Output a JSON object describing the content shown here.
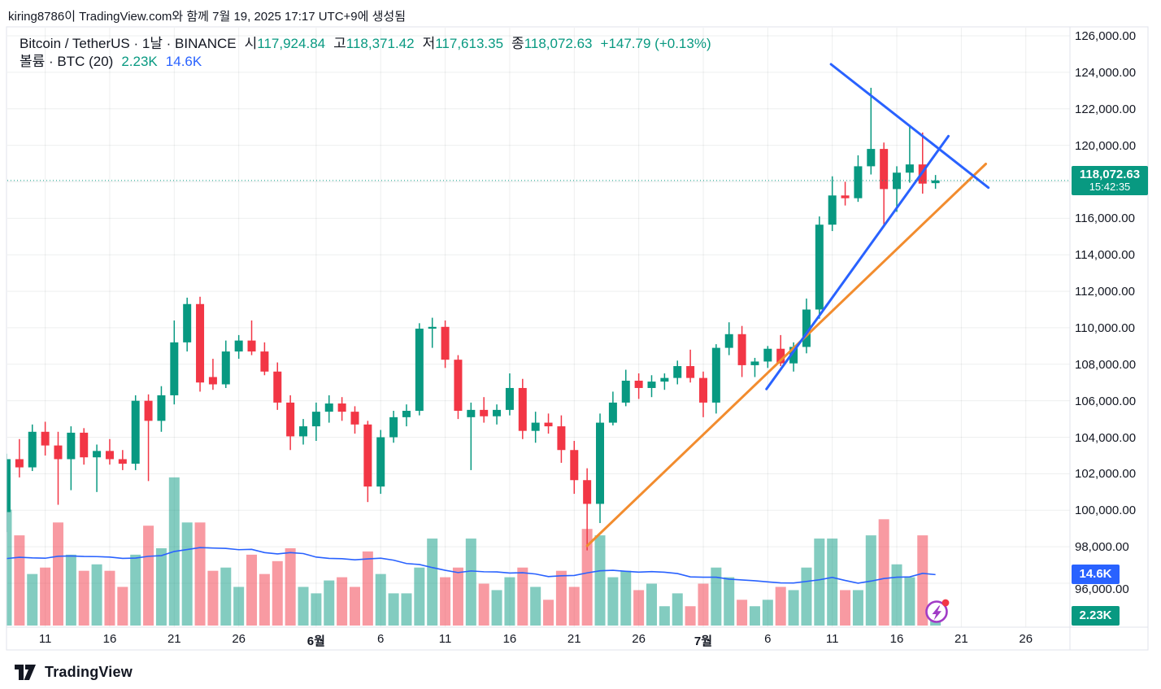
{
  "attribution": "kiring8786이 TradingView.com와 함께 7월 19, 2025 17:17 UTC+9에 생성됨",
  "legend": {
    "title": "Bitcoin / TetherUS · 1날 · BINANCE",
    "open_label": "시",
    "open_value": "117,924.84",
    "high_label": "고",
    "high_value": "118,371.42",
    "low_label": "저",
    "low_value": "117,613.35",
    "close_label": "종",
    "close_value": "118,072.63",
    "change": "+147.79 (+0.13%)",
    "volume_label": "볼륨 · BTC (20)",
    "volume_value": "2.23K",
    "volume_ma_value": "14.6K"
  },
  "price_axis": {
    "ticks": [
      {
        "value": 126000,
        "label": "126,000.00"
      },
      {
        "value": 124000,
        "label": "124,000.00"
      },
      {
        "value": 122000,
        "label": "122,000.00"
      },
      {
        "value": 120000,
        "label": "120,000.00"
      },
      {
        "value": 116000,
        "label": "116,000.00"
      },
      {
        "value": 114000,
        "label": "114,000.00"
      },
      {
        "value": 112000,
        "label": "112,000.00"
      },
      {
        "value": 110000,
        "label": "110,000.00"
      },
      {
        "value": 108000,
        "label": "108,000.00"
      },
      {
        "value": 106000,
        "label": "106,000.00"
      },
      {
        "value": 104000,
        "label": "104,000.00"
      },
      {
        "value": 102000,
        "label": "102,000.00"
      },
      {
        "value": 100000,
        "label": "100,000.00"
      },
      {
        "value": 98000,
        "label": "98,000.00"
      },
      {
        "value": 96000,
        "label": "96,000.00"
      }
    ],
    "price_badge": {
      "price": "118,072.63",
      "countdown": "15:42:35"
    },
    "volume_ma_badge": "14.6K",
    "volume_badge": "2.23K"
  },
  "time_axis": {
    "ticks": [
      {
        "label": "11",
        "index": 3
      },
      {
        "label": "16",
        "index": 8
      },
      {
        "label": "21",
        "index": 13
      },
      {
        "label": "26",
        "index": 18
      },
      {
        "label": "6월",
        "index": 24,
        "bold": true
      },
      {
        "label": "6",
        "index": 29
      },
      {
        "label": "11",
        "index": 34
      },
      {
        "label": "16",
        "index": 39
      },
      {
        "label": "21",
        "index": 44
      },
      {
        "label": "26",
        "index": 49
      },
      {
        "label": "7월",
        "index": 54,
        "bold": true
      },
      {
        "label": "6",
        "index": 59
      },
      {
        "label": "11",
        "index": 64
      },
      {
        "label": "16",
        "index": 69
      },
      {
        "label": "21",
        "index": 74
      },
      {
        "label": "26",
        "index": 79
      }
    ]
  },
  "footer": {
    "brand": "TradingView"
  },
  "chart_data": {
    "type": "candlestick_with_volume",
    "title": "Bitcoin / TetherUS · 1날 · BINANCE",
    "timeframe": "1날",
    "exchange": "BINANCE",
    "price_range": [
      96000,
      126000
    ],
    "grid_step": 2000,
    "current_price": 118072.63,
    "current_countdown": "15:42:35",
    "open": 117924.84,
    "high": 118371.42,
    "low": 117613.35,
    "close": 118072.63,
    "change": 147.79,
    "change_pct": 0.13,
    "candles_ohlc": [
      [
        99900,
        103100,
        98800,
        102800
      ],
      [
        102800,
        103900,
        101800,
        102350
      ],
      [
        102350,
        104700,
        102150,
        104300
      ],
      [
        104300,
        104850,
        103000,
        103550
      ],
      [
        103550,
        104300,
        100300,
        102800
      ],
      [
        102800,
        104600,
        101100,
        104250
      ],
      [
        104250,
        104500,
        102500,
        102900
      ],
      [
        102900,
        103600,
        101000,
        103250
      ],
      [
        103250,
        103900,
        102500,
        102800
      ],
      [
        102800,
        103300,
        102200,
        102550
      ],
      [
        102550,
        106300,
        102200,
        106000
      ],
      [
        106000,
        106350,
        101600,
        104900
      ],
      [
        104900,
        106800,
        104300,
        106300
      ],
      [
        106300,
        110400,
        105800,
        109200
      ],
      [
        109200,
        111650,
        108700,
        111300
      ],
      [
        111300,
        111700,
        106500,
        107000
      ],
      [
        107300,
        108300,
        106600,
        106900
      ],
      [
        106900,
        109300,
        106700,
        108700
      ],
      [
        108700,
        109600,
        108300,
        109300
      ],
      [
        109300,
        110400,
        108500,
        108700
      ],
      [
        108700,
        109200,
        107400,
        107600
      ],
      [
        107600,
        108100,
        105500,
        105900
      ],
      [
        105900,
        106300,
        103300,
        104050
      ],
      [
        104050,
        105000,
        103600,
        104600
      ],
      [
        104600,
        105900,
        103800,
        105400
      ],
      [
        105400,
        106300,
        104800,
        105850
      ],
      [
        105850,
        106200,
        104900,
        105400
      ],
      [
        105400,
        105700,
        104200,
        104700
      ],
      [
        104700,
        104900,
        100450,
        101300
      ],
      [
        101300,
        104400,
        100900,
        104000
      ],
      [
        104000,
        105450,
        103700,
        105100
      ],
      [
        105100,
        105800,
        104600,
        105450
      ],
      [
        105450,
        110250,
        105200,
        109950
      ],
      [
        109950,
        110550,
        108900,
        110050
      ],
      [
        110050,
        110400,
        107800,
        108250
      ],
      [
        108250,
        108500,
        105000,
        105450
      ],
      [
        105100,
        105900,
        102200,
        105500
      ],
      [
        105500,
        106200,
        104800,
        105150
      ],
      [
        105150,
        105800,
        104700,
        105500
      ],
      [
        105500,
        107500,
        105200,
        106700
      ],
      [
        106700,
        107200,
        103900,
        104350
      ],
      [
        104350,
        105400,
        103700,
        104800
      ],
      [
        104800,
        105300,
        104200,
        104600
      ],
      [
        104600,
        105200,
        102600,
        103300
      ],
      [
        103300,
        103800,
        100900,
        101650
      ],
      [
        101650,
        102300,
        97800,
        100350
      ],
      [
        100350,
        105300,
        99300,
        104800
      ],
      [
        104800,
        106500,
        104650,
        105900
      ],
      [
        105900,
        107700,
        105700,
        107100
      ],
      [
        107100,
        107500,
        106100,
        106700
      ],
      [
        106700,
        107400,
        106200,
        107050
      ],
      [
        107050,
        107500,
        106600,
        107250
      ],
      [
        107250,
        108200,
        106900,
        107900
      ],
      [
        107900,
        108800,
        107000,
        107250
      ],
      [
        107250,
        107600,
        105100,
        105900
      ],
      [
        105900,
        109100,
        105300,
        108900
      ],
      [
        108900,
        110300,
        108500,
        109650
      ],
      [
        109650,
        110100,
        107300,
        107950
      ],
      [
        107950,
        108350,
        107300,
        108150
      ],
      [
        108150,
        109000,
        107800,
        108850
      ],
      [
        108850,
        109600,
        107900,
        108050
      ],
      [
        108050,
        109200,
        107600,
        108950
      ],
      [
        108950,
        111600,
        108600,
        111000
      ],
      [
        111000,
        116100,
        110500,
        115650
      ],
      [
        115650,
        118300,
        115300,
        117250
      ],
      [
        117250,
        118000,
        116700,
        117100
      ],
      [
        117100,
        119450,
        116900,
        118850
      ],
      [
        118850,
        123150,
        118400,
        119800
      ],
      [
        119800,
        120150,
        115550,
        117600
      ],
      [
        117600,
        118850,
        116350,
        118500
      ],
      [
        118500,
        121050,
        117950,
        118950
      ],
      [
        118950,
        120700,
        117350,
        117900
      ],
      [
        117924.84,
        118371.42,
        117613.35,
        118072.63
      ]
    ],
    "volumes_k": [
      36,
      28,
      16,
      18,
      32,
      22,
      17,
      19,
      17,
      12,
      22,
      31,
      24,
      46,
      32,
      32,
      17,
      18,
      12,
      22,
      16,
      20,
      24,
      12,
      10,
      14,
      15,
      12,
      23,
      16,
      10,
      10,
      18,
      27,
      15,
      18,
      27,
      13,
      11,
      15,
      18,
      12,
      8,
      17,
      12,
      30,
      28,
      15,
      17,
      11,
      13,
      6,
      10,
      6,
      13,
      18,
      15,
      8,
      6,
      8,
      12,
      11,
      18,
      27,
      27,
      11,
      11,
      28,
      33,
      19,
      15,
      28,
      2.23
    ],
    "volume_ma_period": 20,
    "volume_current_k": 2.23,
    "volume_ma_current_k": 14.6,
    "trendlines": [
      {
        "name": "orange-ascending-support",
        "from": {
          "index": 45.0,
          "price": 98050
        },
        "to": {
          "index": 75.9,
          "price": 118980
        },
        "color": "#F28C2E",
        "width": 3
      },
      {
        "name": "blue-ascending-trendline",
        "from": {
          "index": 58.9,
          "price": 106640
        },
        "to": {
          "index": 73.0,
          "price": 120500
        },
        "color": "#2962FF",
        "width": 3
      },
      {
        "name": "blue-descending-trendline",
        "from": {
          "index": 63.9,
          "price": 124440
        },
        "to": {
          "index": 76.1,
          "price": 117680
        },
        "color": "#2962FF",
        "width": 3
      }
    ],
    "colors": {
      "up": "#089981",
      "down": "#F23645",
      "volume_up": "rgba(8,153,129,0.5)",
      "volume_down": "rgba(242,54,69,0.5)",
      "volume_ma": "#2962FF",
      "grid": "rgba(42,46,57,0.08)",
      "border": "#E0E3EB",
      "text": "#131722",
      "last_price_line": "#089981",
      "badge_price_bg": "#089981",
      "badge_volume_ma_bg": "#2962FF",
      "badge_volume_bg": "#089981",
      "boost_ring": "#A13BC6",
      "boost_dot": "#F23645",
      "logo": "#131722"
    }
  }
}
